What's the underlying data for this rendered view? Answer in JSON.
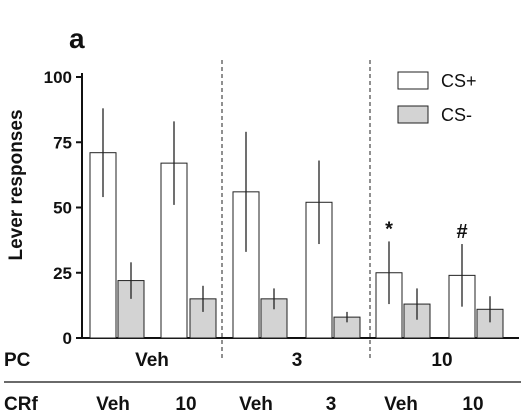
{
  "chart_data": {
    "type": "bar",
    "panel_label": "a",
    "ylabel": "Lever responses",
    "ylim": [
      0,
      100
    ],
    "yticks": [
      "0",
      "25",
      "50",
      "75",
      "100"
    ],
    "series": [
      {
        "name": "CS+",
        "color": "#ffffff"
      },
      {
        "name": "CS-",
        "color": "#d3d3d3"
      }
    ],
    "bars": [
      {
        "series": "CS+",
        "value": 71,
        "error": 17
      },
      {
        "series": "CS-",
        "value": 22,
        "error": 7
      },
      {
        "series": "CS+",
        "value": 67,
        "error": 16
      },
      {
        "series": "CS-",
        "value": 15,
        "error": 5
      },
      {
        "series": "CS+",
        "value": 56,
        "error": 23
      },
      {
        "series": "CS-",
        "value": 15,
        "error": 4
      },
      {
        "series": "CS+",
        "value": 52,
        "error": 16
      },
      {
        "series": "CS-",
        "value": 8,
        "error": 2
      },
      {
        "series": "CS+",
        "value": 25,
        "error": 12,
        "annotation": "*"
      },
      {
        "series": "CS-",
        "value": 13,
        "error": 6
      },
      {
        "series": "CS+",
        "value": 24,
        "error": 12,
        "annotation": "#"
      },
      {
        "series": "CS-",
        "value": 11,
        "error": 5
      }
    ],
    "row_labels": {
      "pc": "PC",
      "crf": "CRf"
    },
    "pc_groups": [
      "Veh",
      "3",
      "10"
    ],
    "crf_labels": [
      "Veh",
      "10",
      "Veh",
      "3",
      "Veh",
      "10"
    ],
    "legend_position": "top-right"
  }
}
